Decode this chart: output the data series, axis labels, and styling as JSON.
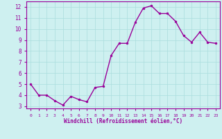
{
  "x": [
    0,
    1,
    2,
    3,
    4,
    5,
    6,
    7,
    8,
    9,
    10,
    11,
    12,
    13,
    14,
    15,
    16,
    17,
    18,
    19,
    20,
    21,
    22,
    23
  ],
  "y": [
    5.0,
    4.0,
    4.0,
    3.5,
    3.1,
    3.9,
    3.6,
    3.4,
    4.7,
    4.8,
    7.6,
    8.7,
    8.7,
    10.6,
    11.9,
    12.1,
    11.4,
    11.4,
    10.7,
    9.4,
    8.8,
    9.7,
    8.8,
    8.7
  ],
  "line_color": "#990099",
  "marker": "o",
  "marker_size": 2.0,
  "bg_color": "#cef0f0",
  "grid_color": "#aadddd",
  "xlabel": "Windchill (Refroidissement éolien,°C)",
  "xlabel_color": "#990099",
  "tick_color": "#990099",
  "spine_color": "#990099",
  "ylim": [
    2.8,
    12.5
  ],
  "xlim": [
    -0.5,
    23.5
  ],
  "yticks": [
    3,
    4,
    5,
    6,
    7,
    8,
    9,
    10,
    11,
    12
  ],
  "xticks": [
    0,
    1,
    2,
    3,
    4,
    5,
    6,
    7,
    8,
    9,
    10,
    11,
    12,
    13,
    14,
    15,
    16,
    17,
    18,
    19,
    20,
    21,
    22,
    23
  ],
  "linewidth": 1.0
}
